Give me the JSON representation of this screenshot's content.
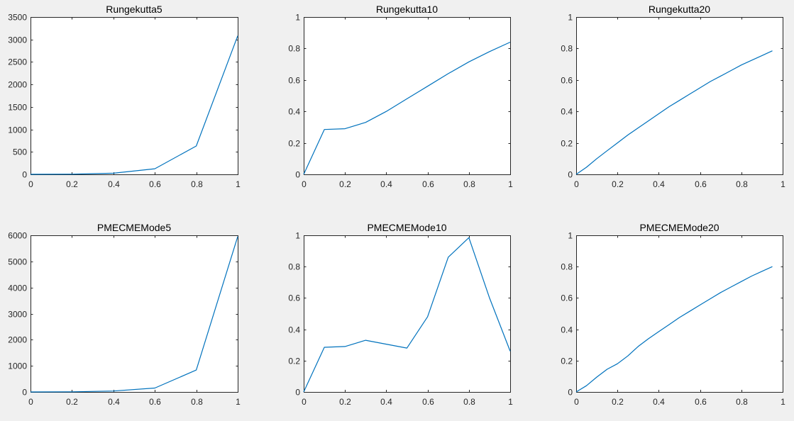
{
  "figure": {
    "background": "#f0f0f0",
    "line_color": "#0072bd",
    "axes_color": "#262626"
  },
  "chart_data": [
    {
      "type": "line",
      "title": "Rungekutta5",
      "xlabel": "",
      "ylabel": "",
      "xlim": [
        0,
        1
      ],
      "ylim": [
        0,
        3500
      ],
      "xticks": [
        0,
        0.2,
        0.4,
        0.6,
        0.8,
        1
      ],
      "xtick_labels": [
        "0",
        "0.2",
        "0.4",
        "0.6",
        "0.8",
        "1"
      ],
      "yticks": [
        0,
        500,
        1000,
        1500,
        2000,
        2500,
        3000,
        3500
      ],
      "ytick_labels": [
        "0",
        "500",
        "1000",
        "1500",
        "2000",
        "2500",
        "3000",
        "3500"
      ],
      "grid": false,
      "series": [
        {
          "x": [
            0,
            0.2,
            0.4,
            0.6,
            0.8,
            1
          ],
          "y": [
            1,
            5,
            25,
            125,
            630,
            3080
          ]
        }
      ]
    },
    {
      "type": "line",
      "title": "Rungekutta10",
      "xlabel": "",
      "ylabel": "",
      "xlim": [
        0,
        1
      ],
      "ylim": [
        0,
        1
      ],
      "xticks": [
        0,
        0.2,
        0.4,
        0.6,
        0.8,
        1
      ],
      "xtick_labels": [
        "0",
        "0.2",
        "0.4",
        "0.6",
        "0.8",
        "1"
      ],
      "yticks": [
        0,
        0.2,
        0.4,
        0.6,
        0.8,
        1
      ],
      "ytick_labels": [
        "0",
        "0.2",
        "0.4",
        "0.6",
        "0.8",
        "1"
      ],
      "grid": false,
      "series": [
        {
          "x": [
            0,
            0.1,
            0.2,
            0.3,
            0.4,
            0.5,
            0.6,
            0.7,
            0.8,
            0.9,
            1
          ],
          "y": [
            0,
            0.285,
            0.29,
            0.33,
            0.4,
            0.48,
            0.56,
            0.64,
            0.715,
            0.78,
            0.84
          ]
        }
      ]
    },
    {
      "type": "line",
      "title": "Rungekutta20",
      "xlabel": "",
      "ylabel": "",
      "xlim": [
        0,
        1
      ],
      "ylim": [
        0,
        1
      ],
      "xticks": [
        0,
        0.2,
        0.4,
        0.6,
        0.8,
        1
      ],
      "xtick_labels": [
        "0",
        "0.2",
        "0.4",
        "0.6",
        "0.8",
        "1"
      ],
      "yticks": [
        0,
        0.2,
        0.4,
        0.6,
        0.8,
        1
      ],
      "ytick_labels": [
        "0",
        "0.2",
        "0.4",
        "0.6",
        "0.8",
        "1"
      ],
      "grid": false,
      "series": [
        {
          "x": [
            0,
            0.05,
            0.1,
            0.15,
            0.2,
            0.25,
            0.3,
            0.35,
            0.4,
            0.45,
            0.5,
            0.55,
            0.6,
            0.65,
            0.7,
            0.75,
            0.8,
            0.85,
            0.9,
            0.95
          ],
          "y": [
            0,
            0.045,
            0.1,
            0.15,
            0.2,
            0.25,
            0.295,
            0.34,
            0.385,
            0.43,
            0.47,
            0.51,
            0.55,
            0.59,
            0.625,
            0.66,
            0.695,
            0.725,
            0.755,
            0.785
          ]
        }
      ]
    },
    {
      "type": "line",
      "title": "PMECMEMode5",
      "xlabel": "",
      "ylabel": "",
      "xlim": [
        0,
        1
      ],
      "ylim": [
        0,
        6000
      ],
      "xticks": [
        0,
        0.2,
        0.4,
        0.6,
        0.8,
        1
      ],
      "xtick_labels": [
        "0",
        "0.2",
        "0.4",
        "0.6",
        "0.8",
        "1"
      ],
      "yticks": [
        0,
        1000,
        2000,
        3000,
        4000,
        5000,
        6000
      ],
      "ytick_labels": [
        "0",
        "1000",
        "2000",
        "3000",
        "4000",
        "5000",
        "6000"
      ],
      "grid": false,
      "series": [
        {
          "x": [
            0,
            0.2,
            0.4,
            0.6,
            0.8,
            1
          ],
          "y": [
            1,
            6,
            35,
            150,
            840,
            5950
          ]
        }
      ]
    },
    {
      "type": "line",
      "title": "PMECMEMode10",
      "xlabel": "",
      "ylabel": "",
      "xlim": [
        0,
        1
      ],
      "ylim": [
        0,
        1
      ],
      "xticks": [
        0,
        0.2,
        0.4,
        0.6,
        0.8,
        1
      ],
      "xtick_labels": [
        "0",
        "0.2",
        "0.4",
        "0.6",
        "0.8",
        "1"
      ],
      "yticks": [
        0,
        0.2,
        0.4,
        0.6,
        0.8,
        1
      ],
      "ytick_labels": [
        "0",
        "0.2",
        "0.4",
        "0.6",
        "0.8",
        "1"
      ],
      "grid": false,
      "series": [
        {
          "x": [
            0,
            0.1,
            0.2,
            0.3,
            0.4,
            0.5,
            0.6,
            0.7,
            0.8,
            0.9,
            1
          ],
          "y": [
            0,
            0.285,
            0.29,
            0.33,
            0.305,
            0.28,
            0.48,
            0.86,
            0.985,
            0.6,
            0.26
          ]
        }
      ]
    },
    {
      "type": "line",
      "title": "PMECMEMode20",
      "xlabel": "",
      "ylabel": "",
      "xlim": [
        0,
        1
      ],
      "ylim": [
        0,
        1
      ],
      "xticks": [
        0,
        0.2,
        0.4,
        0.6,
        0.8,
        1
      ],
      "xtick_labels": [
        "0",
        "0.2",
        "0.4",
        "0.6",
        "0.8",
        "1"
      ],
      "yticks": [
        0,
        0.2,
        0.4,
        0.6,
        0.8,
        1
      ],
      "ytick_labels": [
        "0",
        "0.2",
        "0.4",
        "0.6",
        "0.8",
        "1"
      ],
      "grid": false,
      "series": [
        {
          "x": [
            0,
            0.05,
            0.1,
            0.15,
            0.2,
            0.25,
            0.3,
            0.35,
            0.4,
            0.45,
            0.5,
            0.55,
            0.6,
            0.65,
            0.7,
            0.75,
            0.8,
            0.85,
            0.9,
            0.95
          ],
          "y": [
            0,
            0.04,
            0.095,
            0.145,
            0.18,
            0.23,
            0.29,
            0.34,
            0.385,
            0.43,
            0.475,
            0.515,
            0.555,
            0.595,
            0.635,
            0.67,
            0.705,
            0.74,
            0.77,
            0.8
          ]
        }
      ]
    }
  ]
}
